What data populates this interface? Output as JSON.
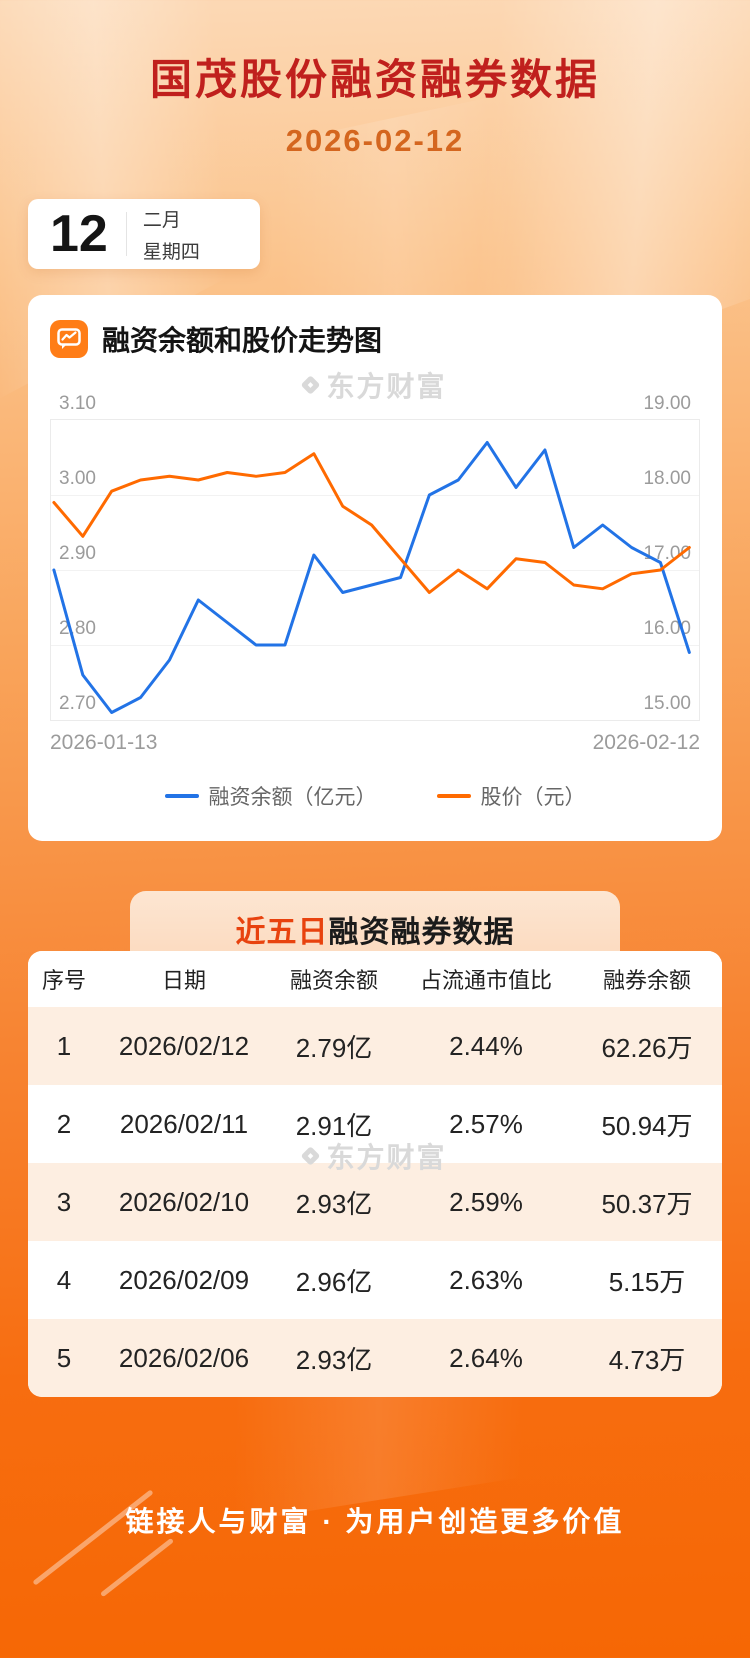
{
  "header": {
    "title": "国茂股份融资融券数据",
    "date": "2026-02-12"
  },
  "date_card": {
    "day": "12",
    "month": "二月",
    "weekday": "星期四"
  },
  "chart_section": {
    "title": "融资余额和股价走势图",
    "watermark": "东方财富",
    "x_axis": {
      "start": "2026-01-13",
      "end": "2026-02-12"
    },
    "legend": [
      {
        "label": "融资余额（亿元）",
        "color": "#2273e6"
      },
      {
        "label": "股价（元）",
        "color": "#ff6a00"
      }
    ]
  },
  "chart_data": {
    "type": "line",
    "x_axis_range": [
      "2026-01-13",
      "2026-02-12"
    ],
    "left_axis": {
      "label": "融资余额（亿元）",
      "min": 2.7,
      "max": 3.1,
      "ticks": [
        "3.10",
        "3.00",
        "2.90",
        "2.80",
        "2.70"
      ]
    },
    "right_axis": {
      "label": "股价（元）",
      "min": 15.0,
      "max": 19.0,
      "ticks": [
        "19.00",
        "18.00",
        "17.00",
        "16.00",
        "15.00"
      ]
    },
    "series": [
      {
        "name": "融资余额（亿元）",
        "axis": "left",
        "color": "#2273e6",
        "values": [
          2.9,
          2.76,
          2.71,
          2.73,
          2.78,
          2.86,
          2.83,
          2.8,
          2.8,
          2.92,
          2.87,
          2.88,
          2.89,
          3.0,
          3.02,
          3.07,
          3.01,
          3.06,
          2.93,
          2.96,
          2.93,
          2.91,
          2.79
        ]
      },
      {
        "name": "股价（元）",
        "axis": "right",
        "color": "#ff6a00",
        "values": [
          17.9,
          17.45,
          18.05,
          18.2,
          18.25,
          18.2,
          18.3,
          18.25,
          18.3,
          18.55,
          17.85,
          17.6,
          17.15,
          16.7,
          17.0,
          16.75,
          17.15,
          17.1,
          16.8,
          16.75,
          16.95,
          17.0,
          17.3
        ]
      }
    ],
    "grid": true,
    "legend_position": "bottom"
  },
  "table_section": {
    "banner": {
      "highlight": "近五日",
      "rest": "融资融券数据"
    },
    "watermark": "东方财富",
    "columns": [
      "序号",
      "日期",
      "融资余额",
      "占流通市值比",
      "融券余额"
    ],
    "rows": [
      [
        "1",
        "2026/02/12",
        "2.79亿",
        "2.44%",
        "62.26万"
      ],
      [
        "2",
        "2026/02/11",
        "2.91亿",
        "2.57%",
        "50.94万"
      ],
      [
        "3",
        "2026/02/10",
        "2.93亿",
        "2.59%",
        "50.37万"
      ],
      [
        "4",
        "2026/02/09",
        "2.96亿",
        "2.63%",
        "5.15万"
      ],
      [
        "5",
        "2026/02/06",
        "2.93亿",
        "2.64%",
        "4.73万"
      ]
    ]
  },
  "footer": {
    "slogan": "链接人与财富 · 为用户创造更多价值"
  },
  "colors": {
    "title": "#c0201d",
    "subtitle_date": "#d4661f",
    "banner_highlight": "#e8420e",
    "financing_line": "#2273e6",
    "price_line": "#ff6a00",
    "footer_text": "#ffffff",
    "background_top": "#fcd9b6",
    "background_bottom": "#f66704"
  }
}
